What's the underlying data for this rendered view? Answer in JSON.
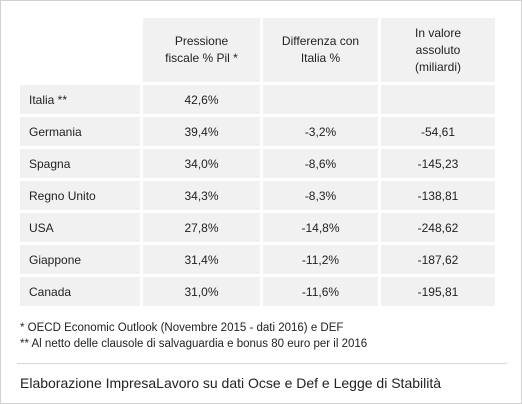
{
  "table": {
    "headers": {
      "country": "",
      "col1": [
        "Pressione",
        "fiscale % Pil *"
      ],
      "col2": [
        "Differenza con",
        "Italia %"
      ],
      "col3": [
        "In valore",
        "assoluto",
        "(miliardi)"
      ]
    },
    "rows": [
      {
        "country": "Italia **",
        "pressione": "42,6%",
        "differenza": "",
        "valore": ""
      },
      {
        "country": "Germania",
        "pressione": "39,4%",
        "differenza": "-3,2%",
        "valore": "-54,61"
      },
      {
        "country": "Spagna",
        "pressione": "34,0%",
        "differenza": "-8,6%",
        "valore": "-145,23"
      },
      {
        "country": "Regno Unito",
        "pressione": "34,3%",
        "differenza": "-8,3%",
        "valore": "-138,81"
      },
      {
        "country": "USA",
        "pressione": "27,8%",
        "differenza": "-14,8%",
        "valore": "-248,62"
      },
      {
        "country": "Giappone",
        "pressione": "31,4%",
        "differenza": "-11,2%",
        "valore": "-187,62"
      },
      {
        "country": "Canada",
        "pressione": "31,0%",
        "differenza": "-11,6%",
        "valore": "-195,81"
      }
    ]
  },
  "footnotes": {
    "note1": "*  OECD Economic Outlook (Novembre 2015 - dati 2016) e DEF",
    "note2": "** Al netto delle clausole di salvaguardia e bonus 80 euro per il 2016"
  },
  "credit": "Elaborazione ImpresaLavoro su dati Ocse e Def e Legge di Stabilità"
}
